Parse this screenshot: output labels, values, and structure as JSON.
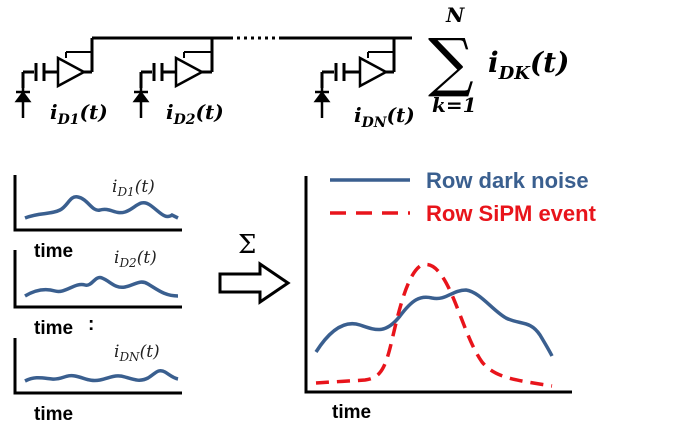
{
  "circuit": {
    "stage_labels": [
      {
        "main": "i",
        "sub": "D1",
        "tail": "(t)"
      },
      {
        "main": "i",
        "sub": "D2",
        "tail": "(t)"
      },
      {
        "main": "i",
        "sub": "DN",
        "tail": "(t)"
      }
    ],
    "sum": {
      "symbol": "∑",
      "upper": "N",
      "lower": "k=1",
      "term_main": "i",
      "term_sub": "DK",
      "term_tail": "(t)"
    }
  },
  "small_plots": [
    {
      "label_main": "i",
      "label_sub": "D1",
      "label_tail": "(t)",
      "xlabel": "time"
    },
    {
      "label_main": "i",
      "label_sub": "D2",
      "label_tail": "(t)",
      "xlabel": "time"
    },
    {
      "label_main": "i",
      "label_sub": "DN",
      "label_tail": "(t)",
      "xlabel": "time"
    }
  ],
  "ellipsis_colon": ":",
  "operator": {
    "symbol": "Σ"
  },
  "big_plot": {
    "xlabel": "time",
    "legend": [
      {
        "label": "Row dark noise",
        "color": "#3a5f8f",
        "style": "solid"
      },
      {
        "label": "Row SiPM event",
        "color": "#e8141b",
        "style": "dashed"
      }
    ]
  },
  "colors": {
    "trace": "#3a5f8f",
    "event": "#e8141b",
    "ink": "#000000"
  }
}
